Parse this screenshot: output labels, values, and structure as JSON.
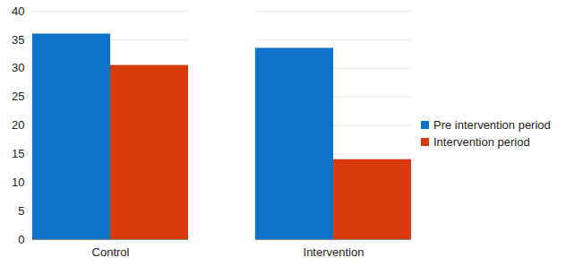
{
  "chart_data": {
    "type": "bar",
    "categories": [
      "Control",
      "Intervention"
    ],
    "series": [
      {
        "name": "Pre intervention period",
        "color": "#0a72c8",
        "values": [
          36,
          33.5
        ]
      },
      {
        "name": "Intervention period",
        "color": "#d83b0b",
        "values": [
          30.5,
          14
        ]
      }
    ],
    "ylim": [
      0,
      40
    ],
    "yticks": [
      0,
      5,
      10,
      15,
      20,
      25,
      30,
      35,
      40
    ],
    "grid": true,
    "legend": "right"
  }
}
